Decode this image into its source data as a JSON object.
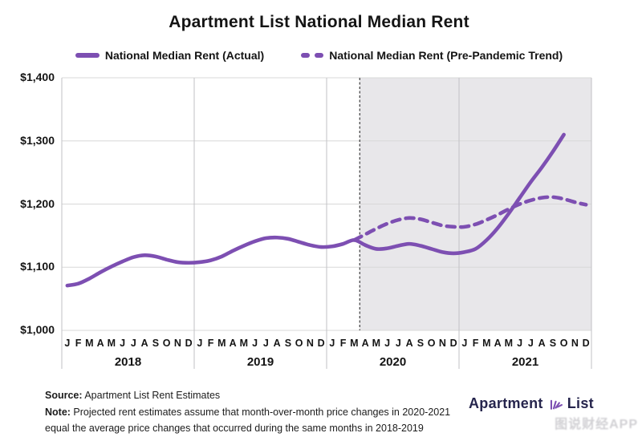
{
  "title": "Apartment List National Median Rent",
  "legend": [
    {
      "label": "National Median Rent (Actual)",
      "style": "solid"
    },
    {
      "label": "National Median Rent (Pre-Pandemic Trend)",
      "style": "dashed"
    }
  ],
  "colors": {
    "line_purple": "#7d4fb2",
    "shaded_region": "#e8e7ea",
    "gridline": "#d8d8d8",
    "year_divider": "#c2c2c6",
    "pandemic_divider": "#2b2b2b",
    "text": "#141414",
    "logo_navy": "#26254d"
  },
  "chart_data": {
    "type": "line",
    "title": "Apartment List National Median Rent",
    "ylabel": "",
    "xlabel": "",
    "ylim": [
      1000,
      1400
    ],
    "yticks": [
      {
        "value": 1400,
        "label": "$1,400"
      },
      {
        "value": 1300,
        "label": "$1,300"
      },
      {
        "value": 1200,
        "label": "$1,200"
      },
      {
        "value": 1100,
        "label": "$1,100"
      },
      {
        "value": 1000,
        "label": "$1,000"
      }
    ],
    "years": [
      "2018",
      "2019",
      "2020",
      "2021"
    ],
    "month_letters": [
      "J",
      "F",
      "M",
      "A",
      "M",
      "J",
      "J",
      "A",
      "S",
      "O",
      "N",
      "D"
    ],
    "months_per_year": 12,
    "total_months": 48,
    "grid": true,
    "legend_position": "top",
    "series": [
      {
        "name": "National Median Rent (Actual)",
        "style": "solid",
        "start_month": "2018-01",
        "start_index": 0,
        "values": [
          1071,
          1074,
          1082,
          1092,
          1101,
          1109,
          1116,
          1119,
          1117,
          1112,
          1108,
          1107,
          1108,
          1111,
          1117,
          1126,
          1134,
          1141,
          1146,
          1147,
          1145,
          1140,
          1135,
          1132,
          1133,
          1137,
          1143,
          1135,
          1129,
          1130,
          1134,
          1137,
          1134,
          1129,
          1124,
          1122,
          1124,
          1129,
          1143,
          1162,
          1185,
          1210,
          1235,
          1258,
          1283,
          1310
        ]
      },
      {
        "name": "National Median Rent (Pre-Pandemic Trend)",
        "style": "dashed",
        "start_month": "2020-03",
        "start_index": 26,
        "values": [
          1143,
          1152,
          1161,
          1169,
          1175,
          1178,
          1176,
          1171,
          1166,
          1164,
          1164,
          1168,
          1175,
          1183,
          1192,
          1200,
          1206,
          1210,
          1211,
          1208,
          1203,
          1199
        ]
      }
    ],
    "pandemic_shading": {
      "start_boundary_index": 27,
      "shaded_to_end": true,
      "dashed_divider_line": true
    }
  },
  "footer": {
    "source_label": "Source:",
    "source_text": " Apartment List Rent Estimates",
    "note_label": "Note:",
    "note_line1": " Projected rent estimates assume that month-over-month price changes in 2020-2021",
    "note_line2": "equal the average price changes that occurred during the same months in 2018-2019"
  },
  "logo": {
    "left_text": "Apartment",
    "right_text": "List"
  },
  "watermark": "图说财经APP"
}
